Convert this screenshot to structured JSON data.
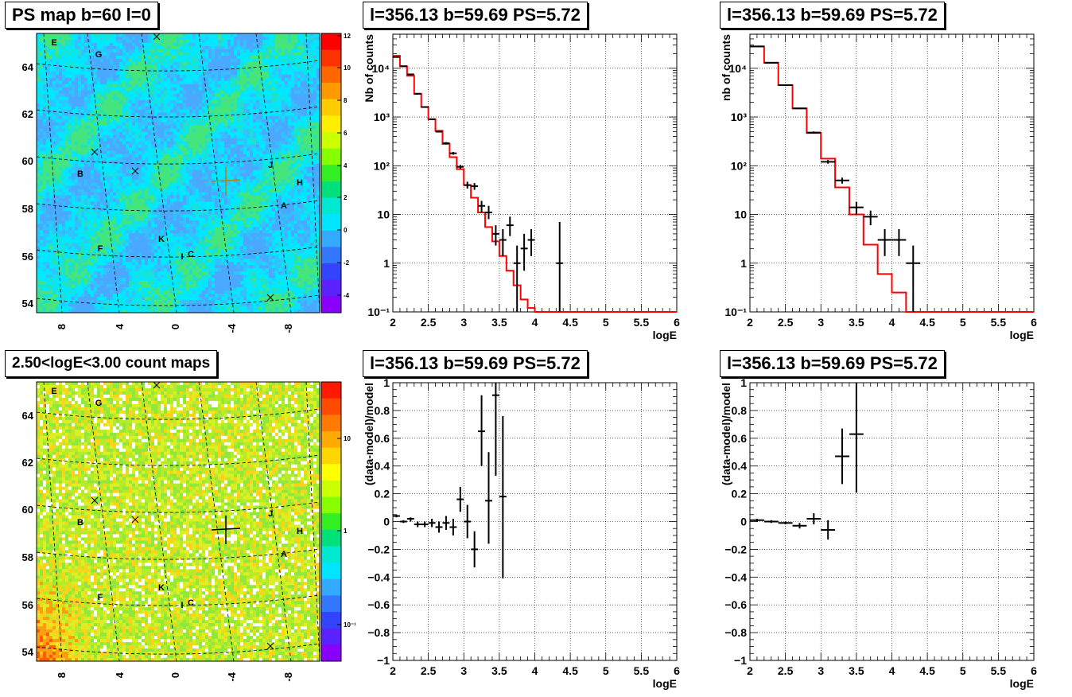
{
  "titles": {
    "map_top": "PS map b=60 l=0",
    "map_bottom": "2.50<logE<3.00 count maps",
    "spec_tl": "l=356.13 b=59.69 PS=5.72",
    "spec_tr": "l=356.13 b=59.69 PS=5.72",
    "res_bl": "l=356.13 b=59.69 PS=5.72",
    "res_br": "l=356.13 b=59.69 PS=5.72"
  },
  "maps": {
    "lat_ticks": [
      "54",
      "56",
      "58",
      "60",
      "62",
      "64"
    ],
    "lon_ticks": [
      "8",
      "4",
      "0",
      "-4",
      "-8"
    ],
    "source_labels": [
      "E",
      "G",
      "B",
      "J",
      "H",
      "A",
      "K",
      "F",
      "I",
      "C"
    ],
    "top_colorbar": {
      "ticks": [
        "12",
        "10",
        "8",
        "6",
        "4",
        "2",
        "0",
        "-2",
        "-4"
      ],
      "range": [
        -5,
        12
      ]
    },
    "bottom_colorbar": {
      "ticks": [
        "10",
        "1",
        "10⁻¹"
      ],
      "scale": "log"
    }
  },
  "chart_data": [
    {
      "type": "line",
      "title": "l=356.13 b=59.69 PS=5.72",
      "xlabel": "logE",
      "ylabel": "Nb of counts",
      "xlim": [
        2,
        6
      ],
      "ylim": [
        0.1,
        50000
      ],
      "yscale": "log",
      "grid": true,
      "x_ticks": [
        "2",
        "2.5",
        "3",
        "3.5",
        "4",
        "4.5",
        "5",
        "5.5",
        "6"
      ],
      "y_ticks": [
        "10⁻¹",
        "1",
        "10",
        "10²",
        "10³",
        "10⁴"
      ],
      "model_color": "#ff0000",
      "model_step": {
        "edges": [
          2.0,
          2.1,
          2.2,
          2.3,
          2.4,
          2.5,
          2.6,
          2.7,
          2.8,
          2.9,
          3.0,
          3.1,
          3.2,
          3.3,
          3.4,
          3.5,
          3.6,
          3.7,
          3.8,
          3.9,
          4.0,
          4.1,
          6.0
        ],
        "values": [
          18000,
          11000,
          7000,
          3000,
          1600,
          900,
          520,
          280,
          150,
          85,
          40,
          22,
          11,
          5.5,
          2.8,
          1.4,
          0.7,
          0.35,
          0.18,
          0.12,
          0.1,
          0.1
        ]
      },
      "data_points": [
        {
          "x": 2.05,
          "y": 17000,
          "xerr": 0.05,
          "ylo": 16700,
          "yhi": 17300
        },
        {
          "x": 2.15,
          "y": 11000,
          "xerr": 0.05,
          "ylo": 10800,
          "yhi": 11200
        },
        {
          "x": 2.25,
          "y": 7500,
          "xerr": 0.05,
          "ylo": 7300,
          "yhi": 7700
        },
        {
          "x": 2.35,
          "y": 3000,
          "xerr": 0.05,
          "ylo": 2900,
          "yhi": 3100
        },
        {
          "x": 2.45,
          "y": 1600,
          "xerr": 0.05,
          "ylo": 1550,
          "yhi": 1650
        },
        {
          "x": 2.55,
          "y": 900,
          "xerr": 0.05,
          "ylo": 870,
          "yhi": 930
        },
        {
          "x": 2.65,
          "y": 500,
          "xerr": 0.05,
          "ylo": 480,
          "yhi": 520
        },
        {
          "x": 2.75,
          "y": 290,
          "xerr": 0.05,
          "ylo": 275,
          "yhi": 305
        },
        {
          "x": 2.85,
          "y": 180,
          "xerr": 0.05,
          "ylo": 168,
          "yhi": 192
        },
        {
          "x": 2.95,
          "y": 95,
          "xerr": 0.05,
          "ylo": 86,
          "yhi": 104
        },
        {
          "x": 3.05,
          "y": 40,
          "xerr": 0.05,
          "ylo": 34,
          "yhi": 47
        },
        {
          "x": 3.15,
          "y": 38,
          "xerr": 0.05,
          "ylo": 32,
          "yhi": 44
        },
        {
          "x": 3.25,
          "y": 15,
          "xerr": 0.05,
          "ylo": 11,
          "yhi": 19
        },
        {
          "x": 3.35,
          "y": 11,
          "xerr": 0.05,
          "ylo": 8,
          "yhi": 15
        },
        {
          "x": 3.45,
          "y": 4,
          "xerr": 0.05,
          "ylo": 2.3,
          "yhi": 6
        },
        {
          "x": 3.55,
          "y": 3,
          "xerr": 0.05,
          "ylo": 1.4,
          "yhi": 5
        },
        {
          "x": 3.65,
          "y": 6,
          "xerr": 0.05,
          "ylo": 3.6,
          "yhi": 9
        },
        {
          "x": 3.75,
          "y": 1,
          "xerr": 0.05,
          "ylo": 0.1,
          "yhi": 2.3
        },
        {
          "x": 3.85,
          "y": 2,
          "xerr": 0.05,
          "ylo": 0.7,
          "yhi": 4
        },
        {
          "x": 3.95,
          "y": 3,
          "xerr": 0.05,
          "ylo": 1.4,
          "yhi": 5
        },
        {
          "x": 4.35,
          "y": 1,
          "xerr": 0.05,
          "ylo": 0.1,
          "yhi": 7
        }
      ]
    },
    {
      "type": "line",
      "title": "l=356.13 b=59.69 PS=5.72",
      "xlabel": "logE",
      "ylabel": "nb of counts",
      "xlim": [
        2,
        6
      ],
      "ylim": [
        0.1,
        50000
      ],
      "yscale": "log",
      "grid": true,
      "x_ticks": [
        "2",
        "2.5",
        "3",
        "3.5",
        "4",
        "4.5",
        "5",
        "5.5",
        "6"
      ],
      "y_ticks": [
        "10⁻¹",
        "1",
        "10",
        "10²",
        "10³",
        "10⁴"
      ],
      "model_color": "#ff0000",
      "model_step": {
        "edges": [
          2.0,
          2.2,
          2.4,
          2.6,
          2.8,
          3.0,
          3.2,
          3.4,
          3.6,
          3.8,
          4.0,
          4.2,
          4.4,
          6.0
        ],
        "values": [
          28000,
          13000,
          4500,
          1500,
          470,
          140,
          36,
          10,
          2.4,
          0.6,
          0.25,
          0.1,
          0.1
        ]
      },
      "data_points": [
        {
          "x": 2.1,
          "y": 28000,
          "xerr": 0.1,
          "ylo": 27500,
          "yhi": 28500
        },
        {
          "x": 2.3,
          "y": 13000,
          "xerr": 0.1,
          "ylo": 12700,
          "yhi": 13300
        },
        {
          "x": 2.5,
          "y": 4500,
          "xerr": 0.1,
          "ylo": 4350,
          "yhi": 4650
        },
        {
          "x": 2.7,
          "y": 1500,
          "xerr": 0.1,
          "ylo": 1450,
          "yhi": 1550
        },
        {
          "x": 2.9,
          "y": 480,
          "xerr": 0.1,
          "ylo": 455,
          "yhi": 505
        },
        {
          "x": 3.1,
          "y": 120,
          "xerr": 0.1,
          "ylo": 110,
          "yhi": 132
        },
        {
          "x": 3.3,
          "y": 50,
          "xerr": 0.1,
          "ylo": 43,
          "yhi": 57
        },
        {
          "x": 3.5,
          "y": 14,
          "xerr": 0.1,
          "ylo": 10,
          "yhi": 18
        },
        {
          "x": 3.7,
          "y": 9,
          "xerr": 0.1,
          "ylo": 6,
          "yhi": 12
        },
        {
          "x": 3.9,
          "y": 3,
          "xerr": 0.1,
          "ylo": 1.4,
          "yhi": 5
        },
        {
          "x": 4.1,
          "y": 3,
          "xerr": 0.1,
          "ylo": 1.4,
          "yhi": 5
        },
        {
          "x": 4.3,
          "y": 1,
          "xerr": 0.1,
          "ylo": 0.1,
          "yhi": 2.3
        }
      ]
    },
    {
      "type": "scatter",
      "title": "l=356.13 b=59.69 PS=5.72",
      "xlabel": "logE",
      "ylabel": "(data-model)/model",
      "xlim": [
        2,
        6
      ],
      "ylim": [
        -1,
        1
      ],
      "grid": true,
      "x_ticks": [
        "2",
        "2.5",
        "3",
        "3.5",
        "4",
        "4.5",
        "5",
        "5.5",
        "6"
      ],
      "y_ticks": [
        "−1",
        "−0.8",
        "−0.6",
        "−0.4",
        "−0.2",
        "0",
        "0.2",
        "0.4",
        "0.6",
        "0.8",
        "1"
      ],
      "data_points": [
        {
          "x": 2.05,
          "y": 0.04,
          "xerr": 0.05,
          "ylo": 0.03,
          "yhi": 0.05
        },
        {
          "x": 2.15,
          "y": 0.0,
          "xerr": 0.05,
          "ylo": -0.01,
          "yhi": 0.01
        },
        {
          "x": 2.25,
          "y": 0.02,
          "xerr": 0.05,
          "ylo": 0.0,
          "yhi": 0.03
        },
        {
          "x": 2.35,
          "y": -0.02,
          "xerr": 0.05,
          "ylo": -0.04,
          "yhi": 0.0
        },
        {
          "x": 2.45,
          "y": -0.02,
          "xerr": 0.05,
          "ylo": -0.04,
          "yhi": 0.0
        },
        {
          "x": 2.55,
          "y": -0.01,
          "xerr": 0.05,
          "ylo": -0.04,
          "yhi": 0.02
        },
        {
          "x": 2.65,
          "y": -0.04,
          "xerr": 0.05,
          "ylo": -0.08,
          "yhi": 0.0
        },
        {
          "x": 2.75,
          "y": -0.01,
          "xerr": 0.05,
          "ylo": -0.06,
          "yhi": 0.04
        },
        {
          "x": 2.85,
          "y": -0.04,
          "xerr": 0.05,
          "ylo": -0.1,
          "yhi": 0.02
        },
        {
          "x": 2.95,
          "y": 0.16,
          "xerr": 0.05,
          "ylo": 0.07,
          "yhi": 0.25
        },
        {
          "x": 3.05,
          "y": 0.0,
          "xerr": 0.05,
          "ylo": -0.12,
          "yhi": 0.12
        },
        {
          "x": 3.15,
          "y": -0.2,
          "xerr": 0.05,
          "ylo": -0.33,
          "yhi": -0.07
        },
        {
          "x": 3.25,
          "y": 0.65,
          "xerr": 0.05,
          "ylo": 0.4,
          "yhi": 0.91
        },
        {
          "x": 3.35,
          "y": 0.15,
          "xerr": 0.05,
          "ylo": -0.16,
          "yhi": 0.5
        },
        {
          "x": 3.45,
          "y": 0.91,
          "xerr": 0.05,
          "ylo": 0.33,
          "yhi": 1.0
        },
        {
          "x": 3.55,
          "y": 0.18,
          "xerr": 0.05,
          "ylo": -0.41,
          "yhi": 0.76
        }
      ]
    },
    {
      "type": "scatter",
      "title": "l=356.13 b=59.69 PS=5.72",
      "xlabel": "logE",
      "ylabel": "(data-model)/model",
      "xlim": [
        2,
        6
      ],
      "ylim": [
        -1,
        1
      ],
      "grid": true,
      "x_ticks": [
        "2",
        "2.5",
        "3",
        "3.5",
        "4",
        "4.5",
        "5",
        "5.5",
        "6"
      ],
      "y_ticks": [
        "−1",
        "−0.8",
        "−0.6",
        "−0.4",
        "−0.2",
        "0",
        "0.2",
        "0.4",
        "0.6",
        "0.8",
        "1"
      ],
      "data_points": [
        {
          "x": 2.1,
          "y": 0.01,
          "xerr": 0.1,
          "ylo": 0.0,
          "yhi": 0.02
        },
        {
          "x": 2.3,
          "y": 0.0,
          "xerr": 0.1,
          "ylo": -0.01,
          "yhi": 0.01
        },
        {
          "x": 2.5,
          "y": -0.01,
          "xerr": 0.1,
          "ylo": -0.02,
          "yhi": 0.0
        },
        {
          "x": 2.7,
          "y": -0.03,
          "xerr": 0.1,
          "ylo": -0.05,
          "yhi": -0.01
        },
        {
          "x": 2.9,
          "y": 0.02,
          "xerr": 0.1,
          "ylo": -0.02,
          "yhi": 0.06
        },
        {
          "x": 3.1,
          "y": -0.06,
          "xerr": 0.1,
          "ylo": -0.13,
          "yhi": 0.01
        },
        {
          "x": 3.3,
          "y": 0.47,
          "xerr": 0.1,
          "ylo": 0.27,
          "yhi": 0.67
        },
        {
          "x": 3.5,
          "y": 0.63,
          "xerr": 0.1,
          "ylo": 0.21,
          "yhi": 1.0
        }
      ]
    }
  ]
}
